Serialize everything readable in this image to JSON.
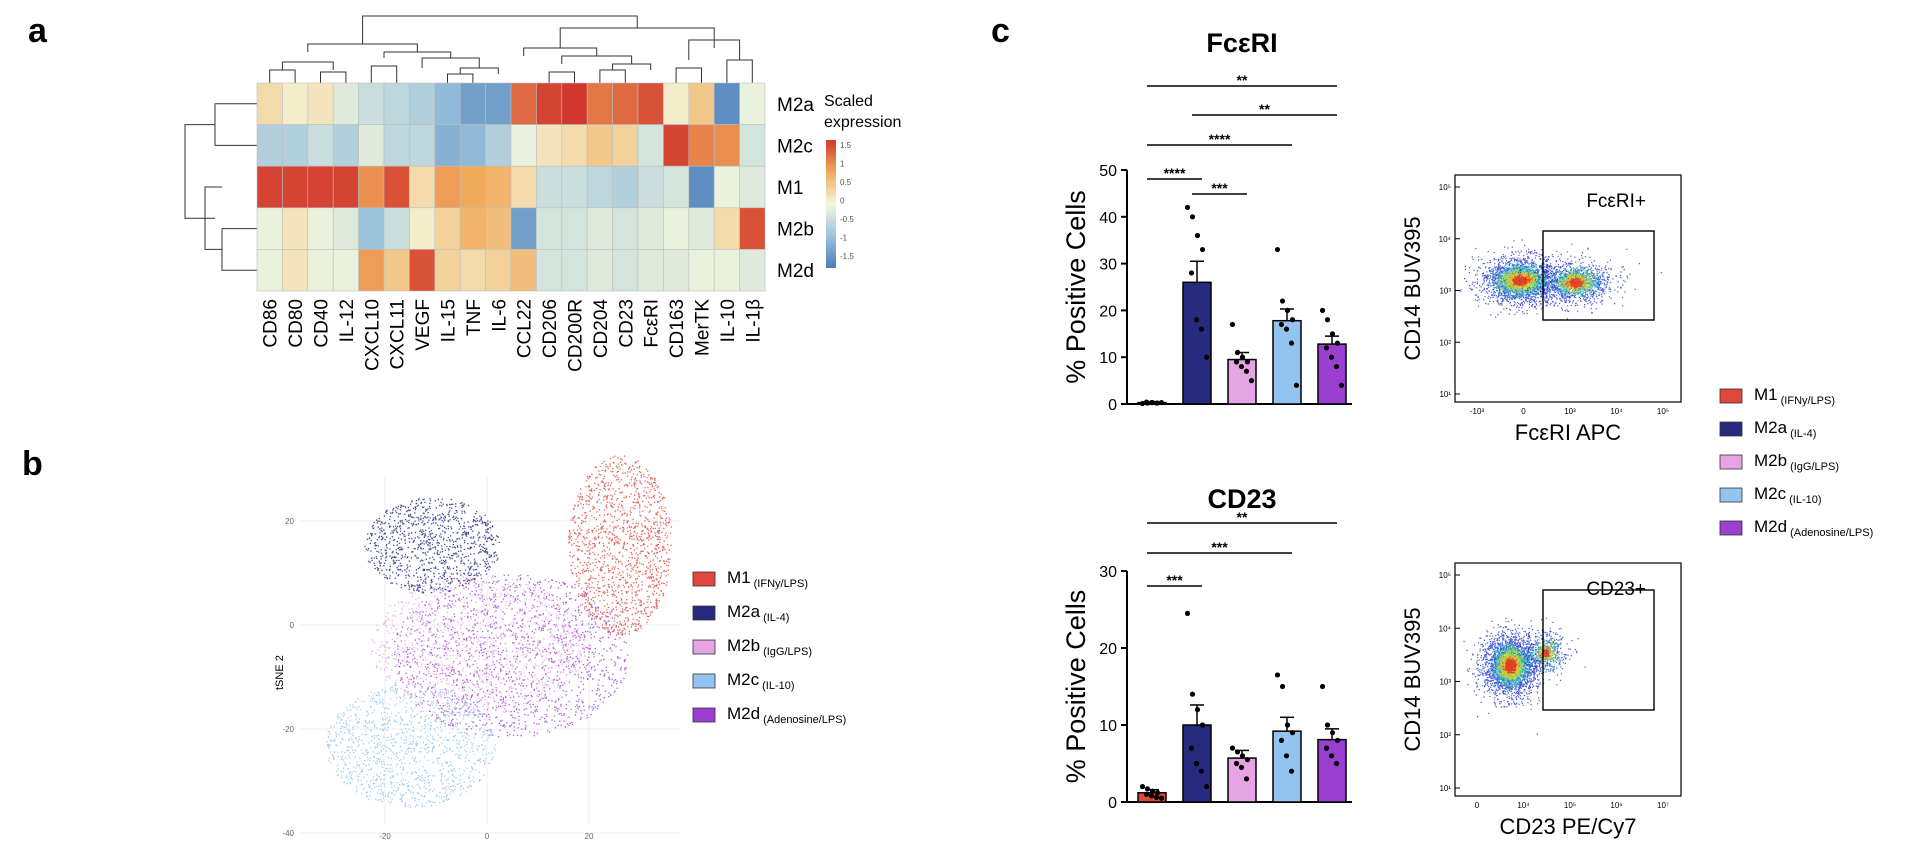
{
  "panels": {
    "a": "a",
    "b": "b",
    "c": "c"
  },
  "colors": {
    "M1": "#e0473b",
    "M2a": "#262b7f",
    "M2b": "#e5a4e3",
    "M2c": "#92c4ef",
    "M2d": "#9b3fd3"
  },
  "legend_b": [
    {
      "key": "M1",
      "main": "M1",
      "sub": "(IFNy/LPS)"
    },
    {
      "key": "M2a",
      "main": "M2a",
      "sub": "(IL-4)"
    },
    {
      "key": "M2b",
      "main": "M2b",
      "sub": "(IgG/LPS)"
    },
    {
      "key": "M2c",
      "main": "M2c",
      "sub": "(IL-10)"
    },
    {
      "key": "M2d",
      "main": "M2d",
      "sub": "(Adenosine/LPS)"
    }
  ],
  "legend_c": [
    {
      "key": "M1",
      "main": "M1",
      "sub": "(IFNy/LPS)"
    },
    {
      "key": "M2a",
      "main": "M2a",
      "sub": "(IL-4)"
    },
    {
      "key": "M2b",
      "main": "M2b",
      "sub": "(IgG/LPS)"
    },
    {
      "key": "M2c",
      "main": "M2c",
      "sub": "(IL-10)"
    },
    {
      "key": "M2d",
      "main": "M2d",
      "sub": "(Adenosine/LPS)"
    }
  ],
  "flow": [
    {
      "ylabel": "CD14 BUV395",
      "xlabel": "FcεRI APC",
      "gate": "FcεRI+",
      "yticks": [
        "10⁵",
        "10⁴",
        "10³",
        "10²",
        "10¹"
      ],
      "xticks": [
        "-10³",
        "0",
        "10³",
        "10⁴",
        "10⁵"
      ]
    },
    {
      "ylabel": "CD14 BUV395",
      "xlabel": "CD23 PE/Cy7",
      "gate": "CD23+",
      "yticks": [
        "10⁵",
        "10⁴",
        "10³",
        "10²",
        "10¹"
      ],
      "xticks": [
        "0",
        "10⁴",
        "10⁵",
        "10⁶",
        "10⁷"
      ]
    }
  ],
  "chart_data": [
    {
      "type": "heatmap",
      "panel": "a",
      "rows": [
        "M2a",
        "M2c",
        "M1",
        "M2b",
        "M2d"
      ],
      "columns": [
        "CD86",
        "CD80",
        "CD40",
        "IL-12",
        "CXCL10",
        "CXCL11",
        "VEGF",
        "IL-15",
        "TNF",
        "IL-6",
        "CCL22",
        "CD206",
        "CD200R",
        "CD204",
        "CD23",
        "FcεRI",
        "CD163",
        "MerTK",
        "IL-10",
        "IL-1β"
      ],
      "values": [
        [
          0.3,
          0.1,
          0.2,
          -0.2,
          -0.4,
          -0.5,
          -0.6,
          -0.9,
          -1.2,
          -1.2,
          1.3,
          1.6,
          1.7,
          1.2,
          1.3,
          1.5,
          0.1,
          0.5,
          -1.4,
          -0.1
        ],
        [
          -0.6,
          -0.6,
          -0.4,
          -0.6,
          -0.2,
          -0.5,
          -0.5,
          -1.0,
          -0.9,
          -0.6,
          -0.1,
          0.2,
          0.3,
          0.5,
          0.4,
          -0.3,
          1.6,
          1.1,
          1.0,
          -0.3
        ],
        [
          1.6,
          1.6,
          1.6,
          1.6,
          1.0,
          1.5,
          0.3,
          0.9,
          0.8,
          0.7,
          0.3,
          -0.4,
          -0.4,
          -0.5,
          -0.6,
          -0.4,
          -0.3,
          -1.4,
          -0.1,
          -0.2
        ],
        [
          -0.1,
          0.2,
          -0.1,
          -0.2,
          -0.8,
          -0.4,
          0.1,
          0.4,
          0.7,
          0.6,
          -1.2,
          -0.3,
          -0.3,
          -0.2,
          -0.3,
          -0.2,
          -0.1,
          -0.2,
          0.3,
          1.5
        ],
        [
          -0.1,
          0.2,
          -0.1,
          -0.1,
          0.9,
          0.5,
          1.5,
          0.4,
          0.3,
          0.4,
          0.6,
          -0.3,
          -0.3,
          -0.2,
          -0.3,
          -0.2,
          -0.2,
          -0.1,
          -0.1,
          -0.2
        ]
      ],
      "legend_title": "Scaled expression",
      "scale_ticks": [
        "1.5",
        "1",
        "0.5",
        "0",
        "-0.5",
        "-1",
        "-1.5"
      ]
    },
    {
      "type": "scatter",
      "panel": "b",
      "ylabel": "tSNE 2",
      "xticks": [
        "-20",
        "0",
        "20"
      ],
      "yticks": [
        "20",
        "0",
        "-20",
        "-40"
      ],
      "clusters": [
        {
          "name": "M2a",
          "key": "M2a",
          "center": [
            -5,
            18
          ],
          "count": 1000
        },
        {
          "name": "M1",
          "key": "M1",
          "center": [
            22,
            13
          ],
          "count": 1300
        },
        {
          "name": "M2d",
          "key": "M2d",
          "center": [
            4,
            2
          ],
          "count": 1500
        },
        {
          "name": "M2b",
          "key": "M2b",
          "center": [
            2,
            2
          ],
          "count": 1100
        },
        {
          "name": "M2c",
          "key": "M2c",
          "center": [
            -13,
            -24
          ],
          "count": 1200
        }
      ]
    },
    {
      "type": "bar",
      "panel": "c",
      "title": "FcεRI",
      "ylabel": "% Positive Cells",
      "ylim": [
        0,
        50
      ],
      "yticks": [
        0,
        10,
        20,
        30,
        40,
        50
      ],
      "categories": [
        "M1",
        "M2a",
        "M2b",
        "M2c",
        "M2d"
      ],
      "values": [
        0.3,
        26,
        9.5,
        17.8,
        12.8
      ],
      "errors": [
        0.1,
        4.5,
        1.5,
        2.5,
        1.7
      ],
      "points": [
        [
          0.1,
          0.2,
          0.3,
          0.2,
          0.4,
          0.3,
          0.2,
          0.3
        ],
        [
          42,
          40,
          36,
          33,
          28,
          18,
          16,
          10
        ],
        [
          17,
          11,
          10,
          9,
          9,
          8,
          7,
          5
        ],
        [
          33,
          22,
          20,
          18,
          17,
          16,
          13,
          4
        ],
        [
          20,
          18,
          15,
          13,
          12,
          10,
          8,
          4
        ]
      ],
      "significance": [
        {
          "from": 0,
          "to": 1,
          "label": "****"
        },
        {
          "from": 1,
          "to": 2,
          "label": "***"
        },
        {
          "from": 0,
          "to": 3,
          "label": "****"
        },
        {
          "from": 1,
          "to": 4,
          "label": "**"
        },
        {
          "from": 0,
          "to": 4,
          "label": "**"
        }
      ]
    },
    {
      "type": "bar",
      "panel": "c",
      "title": "CD23",
      "ylabel": "% Positive Cells",
      "ylim": [
        0,
        30
      ],
      "yticks": [
        0,
        10,
        20,
        30
      ],
      "categories": [
        "M1",
        "M2a",
        "M2b",
        "M2c",
        "M2d"
      ],
      "values": [
        1.2,
        10,
        5.7,
        9.2,
        8.1
      ],
      "errors": [
        0.4,
        2.6,
        1.0,
        1.8,
        1.4
      ],
      "points": [
        [
          2.0,
          1.7,
          1.4,
          1.2,
          1.0,
          0.8,
          0.6,
          0.5
        ],
        [
          24.5,
          14,
          12,
          10,
          7,
          5,
          4,
          2
        ],
        [
          7,
          6.5,
          6,
          5.5,
          5,
          4.5,
          3
        ],
        [
          16.5,
          15,
          10,
          9,
          8,
          6,
          4
        ],
        [
          15,
          10,
          9,
          8,
          7,
          6,
          5
        ]
      ],
      "significance": [
        {
          "from": 0,
          "to": 1,
          "label": "***"
        },
        {
          "from": 0,
          "to": 3,
          "label": "***"
        },
        {
          "from": 0,
          "to": 4,
          "label": "**"
        }
      ]
    }
  ]
}
